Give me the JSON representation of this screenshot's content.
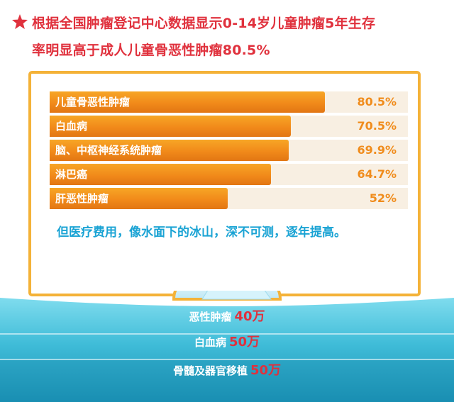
{
  "heading": {
    "line1": "根据全国肿瘤登记中心数据显示0-14岁儿童肿瘤5年生存",
    "line2": "率明显高于成人儿童骨恶性肿瘤80.5%",
    "star_icon": "star-icon",
    "color": "#e0313d"
  },
  "chart_data": {
    "type": "bar",
    "orientation": "horizontal",
    "categories": [
      "儿童骨恶性肿瘤",
      "白血病",
      "脑、中枢神经系统肿瘤",
      "淋巴癌",
      "肝恶性肿瘤"
    ],
    "values": [
      80.5,
      70.5,
      69.9,
      64.7,
      52
    ],
    "value_labels": [
      "80.5%",
      "70.5%",
      "69.9%",
      "64.7%",
      "52%"
    ],
    "unit": "%",
    "bar_color": "#f18a1a",
    "track_color": "#f8efe2"
  },
  "caption": "但医疗费用，像水面下的冰山，深不可测，逐年提高。",
  "costs": [
    {
      "label": "恶性肿瘤",
      "value": "40万"
    },
    {
      "label": "白血病",
      "value": "50万"
    },
    {
      "label": "骨髓及器官移植",
      "value": "50万"
    }
  ]
}
